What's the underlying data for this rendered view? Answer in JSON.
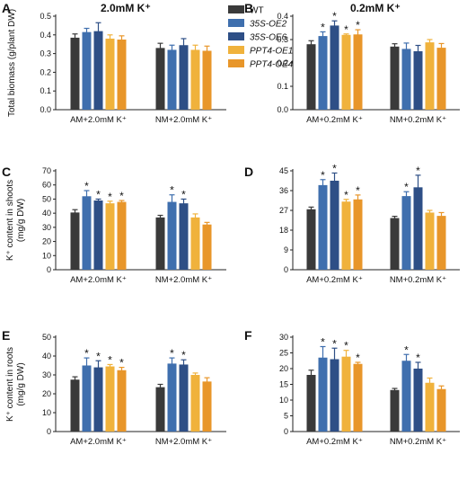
{
  "colors": {
    "WT": "#3a3a3a",
    "35S-OE2": "#3f6fae",
    "35S-OE6": "#2e4f86",
    "PPT4-OE1": "#f0b23c",
    "PPT4-OE4": "#e8962a",
    "axis": "#222222"
  },
  "legend": {
    "position": "top-center",
    "entries": [
      {
        "key": "WT",
        "label": "WT",
        "italic": false
      },
      {
        "key": "35S-OE2",
        "label": "35S-OE2",
        "italic": true
      },
      {
        "key": "35S-OE6",
        "label": "35S-OE6",
        "italic": true
      },
      {
        "key": "PPT4-OE1",
        "label": "PPT4-OE1",
        "italic": true
      },
      {
        "key": "PPT4-OE4",
        "label": "PPT4-OE4",
        "italic": true
      }
    ]
  },
  "chart_data": [
    {
      "panel": "A",
      "type": "bar",
      "title": "2.0mM K⁺",
      "ylabel": [
        "Total biomass (g/plant DW)"
      ],
      "ylim": [
        0,
        0.5
      ],
      "yticks": [
        "0.0",
        "0.1",
        "0.2",
        "0.3",
        "0.4",
        "0.5"
      ],
      "categories": [
        "AM+2.0mM K⁺",
        "NM+2.0mM K⁺"
      ],
      "series": [
        {
          "key": "WT",
          "name": "WT",
          "values": [
            0.385,
            0.33
          ],
          "errors": [
            0.02,
            0.025
          ],
          "sig": [
            false,
            false
          ]
        },
        {
          "key": "35S-OE2",
          "name": "35S-OE2",
          "values": [
            0.415,
            0.32
          ],
          "errors": [
            0.02,
            0.025
          ],
          "sig": [
            false,
            false
          ]
        },
        {
          "key": "35S-OE6",
          "name": "35S-OE6",
          "values": [
            0.42,
            0.345
          ],
          "errors": [
            0.045,
            0.035
          ],
          "sig": [
            false,
            false
          ]
        },
        {
          "key": "PPT4-OE1",
          "name": "PPT4-OE1",
          "values": [
            0.38,
            0.32
          ],
          "errors": [
            0.02,
            0.025
          ],
          "sig": [
            false,
            false
          ]
        },
        {
          "key": "PPT4-OE4",
          "name": "PPT4-OE4",
          "values": [
            0.375,
            0.315
          ],
          "errors": [
            0.02,
            0.025
          ],
          "sig": [
            false,
            false
          ]
        }
      ]
    },
    {
      "panel": "B",
      "type": "bar",
      "title": "0.2mM K⁺",
      "ylabel": [],
      "ylim": [
        0,
        0.4
      ],
      "yticks": [
        "0.0",
        "0.1",
        "0.2",
        "0.3",
        "0.4"
      ],
      "categories": [
        "AM+0.2mM K⁺",
        "NM+0.2mM K⁺"
      ],
      "series": [
        {
          "key": "WT",
          "name": "WT",
          "values": [
            0.28,
            0.27
          ],
          "errors": [
            0.015,
            0.012
          ],
          "sig": [
            false,
            false
          ]
        },
        {
          "key": "35S-OE2",
          "name": "35S-OE2",
          "values": [
            0.315,
            0.26
          ],
          "errors": [
            0.018,
            0.025
          ],
          "sig": [
            true,
            false
          ]
        },
        {
          "key": "35S-OE6",
          "name": "35S-OE6",
          "values": [
            0.36,
            0.25
          ],
          "errors": [
            0.02,
            0.025
          ],
          "sig": [
            true,
            false
          ]
        },
        {
          "key": "PPT4-OE1",
          "name": "PPT4-OE1",
          "values": [
            0.32,
            0.288
          ],
          "errors": [
            0.004,
            0.012
          ],
          "sig": [
            true,
            false
          ]
        },
        {
          "key": "PPT4-OE4",
          "name": "PPT4-OE4",
          "values": [
            0.322,
            0.265
          ],
          "errors": [
            0.02,
            0.018
          ],
          "sig": [
            true,
            false
          ]
        }
      ]
    },
    {
      "panel": "C",
      "type": "bar",
      "title": "",
      "ylabel": [
        "K⁺ content in shoots",
        "(mg/g DW)"
      ],
      "ylim": [
        0,
        70
      ],
      "yticks": [
        "0",
        "10",
        "20",
        "30",
        "40",
        "50",
        "60",
        "70"
      ],
      "categories": [
        "AM+2.0mM K⁺",
        "NM+2.0mM K⁺"
      ],
      "series": [
        {
          "key": "WT",
          "name": "WT",
          "values": [
            40.5,
            37.0
          ],
          "errors": [
            2.0,
            1.5
          ],
          "sig": [
            false,
            false
          ]
        },
        {
          "key": "35S-OE2",
          "name": "35S-OE2",
          "values": [
            52.0,
            48.0
          ],
          "errors": [
            4.0,
            5.0
          ],
          "sig": [
            true,
            true
          ]
        },
        {
          "key": "35S-OE6",
          "name": "35S-OE6",
          "values": [
            49.0,
            47.0
          ],
          "errors": [
            1.0,
            3.0
          ],
          "sig": [
            true,
            true
          ]
        },
        {
          "key": "PPT4-OE1",
          "name": "PPT4-OE1",
          "values": [
            47.0,
            37.0
          ],
          "errors": [
            1.5,
            2.5
          ],
          "sig": [
            true,
            false
          ]
        },
        {
          "key": "PPT4-OE4",
          "name": "PPT4-OE4",
          "values": [
            48.0,
            32.0
          ],
          "errors": [
            1.0,
            1.5
          ],
          "sig": [
            true,
            false
          ]
        }
      ]
    },
    {
      "panel": "D",
      "type": "bar",
      "title": "",
      "ylabel": [],
      "ylim": [
        0,
        45
      ],
      "yticks": [
        "0",
        "9",
        "18",
        "27",
        "36",
        "45"
      ],
      "categories": [
        "AM+0.2mM K⁺",
        "NM+0.2mM K⁺"
      ],
      "series": [
        {
          "key": "WT",
          "name": "WT",
          "values": [
            27.5,
            23.5
          ],
          "errors": [
            1.0,
            0.8
          ],
          "sig": [
            false,
            false
          ]
        },
        {
          "key": "35S-OE2",
          "name": "35S-OE2",
          "values": [
            38.5,
            33.5
          ],
          "errors": [
            2.5,
            2.0
          ],
          "sig": [
            true,
            true
          ]
        },
        {
          "key": "35S-OE6",
          "name": "35S-OE6",
          "values": [
            40.5,
            37.5
          ],
          "errors": [
            3.5,
            5.5
          ],
          "sig": [
            true,
            true
          ]
        },
        {
          "key": "PPT4-OE1",
          "name": "PPT4-OE1",
          "values": [
            31.0,
            26.0
          ],
          "errors": [
            1.0,
            1.0
          ],
          "sig": [
            true,
            false
          ]
        },
        {
          "key": "PPT4-OE4",
          "name": "PPT4-OE4",
          "values": [
            32.0,
            24.5
          ],
          "errors": [
            2.0,
            1.5
          ],
          "sig": [
            true,
            false
          ]
        }
      ]
    },
    {
      "panel": "E",
      "type": "bar",
      "title": "",
      "ylabel": [
        "K⁺ content in roots",
        "(mg/g DW)"
      ],
      "ylim": [
        0,
        50
      ],
      "yticks": [
        "0",
        "10",
        "20",
        "30",
        "40",
        "50"
      ],
      "categories": [
        "AM+2.0mM K⁺",
        "NM+2.0mM K⁺"
      ],
      "series": [
        {
          "key": "WT",
          "name": "WT",
          "values": [
            27.5,
            23.5
          ],
          "errors": [
            1.5,
            1.5
          ],
          "sig": [
            false,
            false
          ]
        },
        {
          "key": "35S-OE2",
          "name": "35S-OE2",
          "values": [
            35.0,
            36.0
          ],
          "errors": [
            4.0,
            3.0
          ],
          "sig": [
            true,
            true
          ]
        },
        {
          "key": "35S-OE6",
          "name": "35S-OE6",
          "values": [
            34.0,
            35.5
          ],
          "errors": [
            3.5,
            2.5
          ],
          "sig": [
            true,
            true
          ]
        },
        {
          "key": "PPT4-OE1",
          "name": "PPT4-OE1",
          "values": [
            34.5,
            30.0
          ],
          "errors": [
            1.0,
            1.0
          ],
          "sig": [
            true,
            false
          ]
        },
        {
          "key": "PPT4-OE4",
          "name": "PPT4-OE4",
          "values": [
            32.5,
            26.5
          ],
          "errors": [
            1.5,
            2.0
          ],
          "sig": [
            true,
            false
          ]
        }
      ]
    },
    {
      "panel": "F",
      "type": "bar",
      "title": "",
      "ylabel": [],
      "ylim": [
        0,
        30
      ],
      "yticks": [
        "0",
        "5",
        "10",
        "15",
        "20",
        "25",
        "30"
      ],
      "categories": [
        "AM+0.2mM K⁺",
        "NM+0.2mM K⁺"
      ],
      "series": [
        {
          "key": "WT",
          "name": "WT",
          "values": [
            18.0,
            13.2
          ],
          "errors": [
            1.5,
            0.5
          ],
          "sig": [
            false,
            false
          ]
        },
        {
          "key": "35S-OE2",
          "name": "35S-OE2",
          "values": [
            23.5,
            22.5
          ],
          "errors": [
            3.5,
            2.0
          ],
          "sig": [
            true,
            true
          ]
        },
        {
          "key": "35S-OE6",
          "name": "35S-OE6",
          "values": [
            23.0,
            20.0
          ],
          "errors": [
            3.5,
            2.0
          ],
          "sig": [
            true,
            true
          ]
        },
        {
          "key": "PPT4-OE1",
          "name": "PPT4-OE1",
          "values": [
            23.8,
            15.5
          ],
          "errors": [
            2.0,
            1.5
          ],
          "sig": [
            true,
            false
          ]
        },
        {
          "key": "PPT4-OE4",
          "name": "PPT4-OE4",
          "values": [
            21.5,
            13.5
          ],
          "errors": [
            0.5,
            1.0
          ],
          "sig": [
            true,
            false
          ]
        }
      ]
    }
  ]
}
